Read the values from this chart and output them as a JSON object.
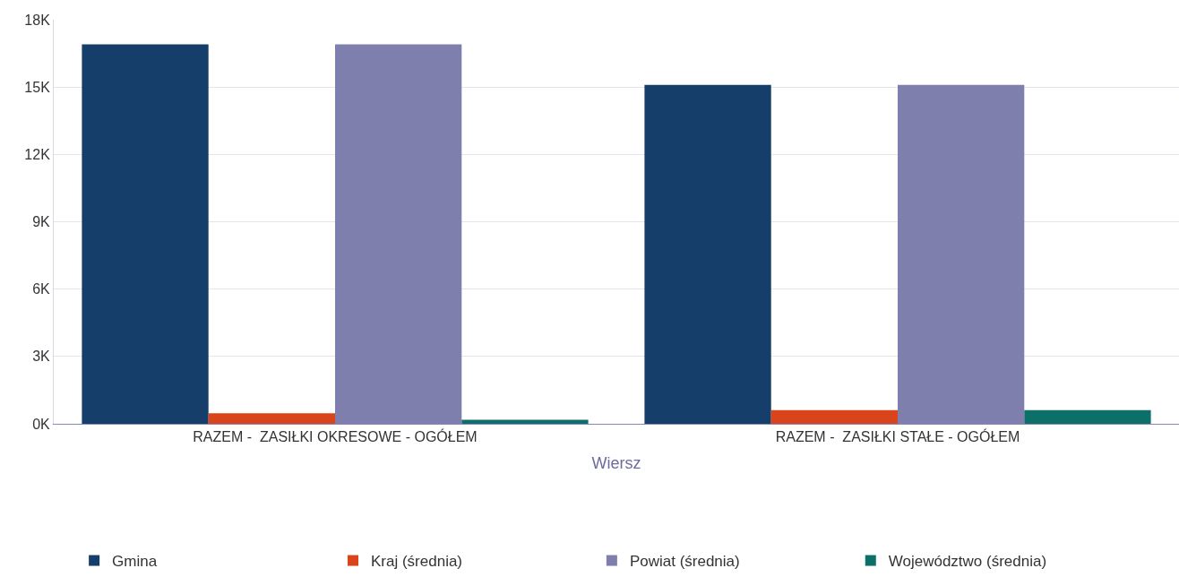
{
  "chart_data": {
    "type": "bar",
    "xlabel": "Wiersz",
    "categories": [
      "RAZEM -  ZASIŁKI OKRESOWE - OGÓŁEM",
      "RAZEM -  ZASIŁKI STAŁE - OGÓŁEM"
    ],
    "series": [
      {
        "name": "Gmina",
        "color": "#163e6b",
        "values": [
          16900,
          15100
        ]
      },
      {
        "name": "Kraj (średnia)",
        "color": "#d9441a",
        "values": [
          470,
          610
        ]
      },
      {
        "name": "Powiat (średnia)",
        "color": "#7f7fae",
        "values": [
          16900,
          15100
        ]
      },
      {
        "name": "Województwo (średnia)",
        "color": "#0d7068",
        "values": [
          180,
          610
        ]
      }
    ],
    "ylim": [
      0,
      18000
    ],
    "yticks": [
      {
        "value": 0,
        "label": "0K"
      },
      {
        "value": 3000,
        "label": "3K"
      },
      {
        "value": 6000,
        "label": "6K"
      },
      {
        "value": 9000,
        "label": "9K"
      },
      {
        "value": 12000,
        "label": "12K"
      },
      {
        "value": 15000,
        "label": "15K"
      },
      {
        "value": 18000,
        "label": "18K"
      }
    ],
    "grid": "y",
    "legend": "bottom"
  }
}
